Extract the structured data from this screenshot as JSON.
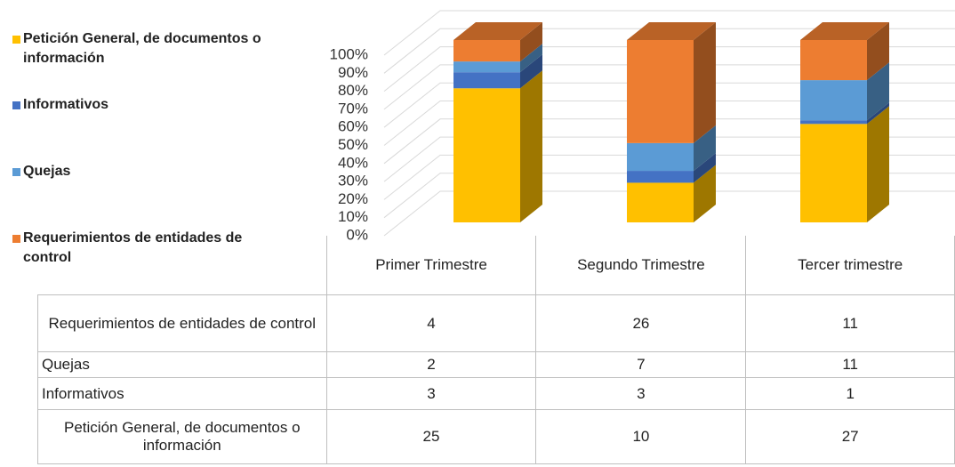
{
  "chart_data": {
    "type": "bar",
    "stacking": "percent",
    "three_d": true,
    "categories": [
      "Primer Trimestre",
      "Segundo Trimestre",
      "Tercer trimestre"
    ],
    "series": [
      {
        "name": "Petición General, de documentos o información",
        "color": "#FFC000",
        "values": [
          25,
          10,
          27
        ]
      },
      {
        "name": "Informativos",
        "color": "#4472C4",
        "values": [
          3,
          3,
          1
        ]
      },
      {
        "name": "Quejas",
        "color": "#5B9BD5",
        "values": [
          2,
          7,
          11
        ]
      },
      {
        "name": "Requerimientos de entidades de control",
        "color": "#ED7D31",
        "values": [
          4,
          26,
          11
        ]
      }
    ],
    "ylim": [
      0,
      100
    ],
    "yticks": [
      {
        "value": 0,
        "label": "0%"
      },
      {
        "value": 10,
        "label": "10%"
      },
      {
        "value": 20,
        "label": "20%"
      },
      {
        "value": 30,
        "label": "30%"
      },
      {
        "value": 40,
        "label": "40%"
      },
      {
        "value": 50,
        "label": "50%"
      },
      {
        "value": 60,
        "label": "60%"
      },
      {
        "value": 70,
        "label": "70%"
      },
      {
        "value": 80,
        "label": "80%"
      },
      {
        "value": 90,
        "label": "90%"
      },
      {
        "value": 100,
        "label": "100%"
      }
    ],
    "grid": true,
    "legend": "left",
    "data_table": true
  }
}
